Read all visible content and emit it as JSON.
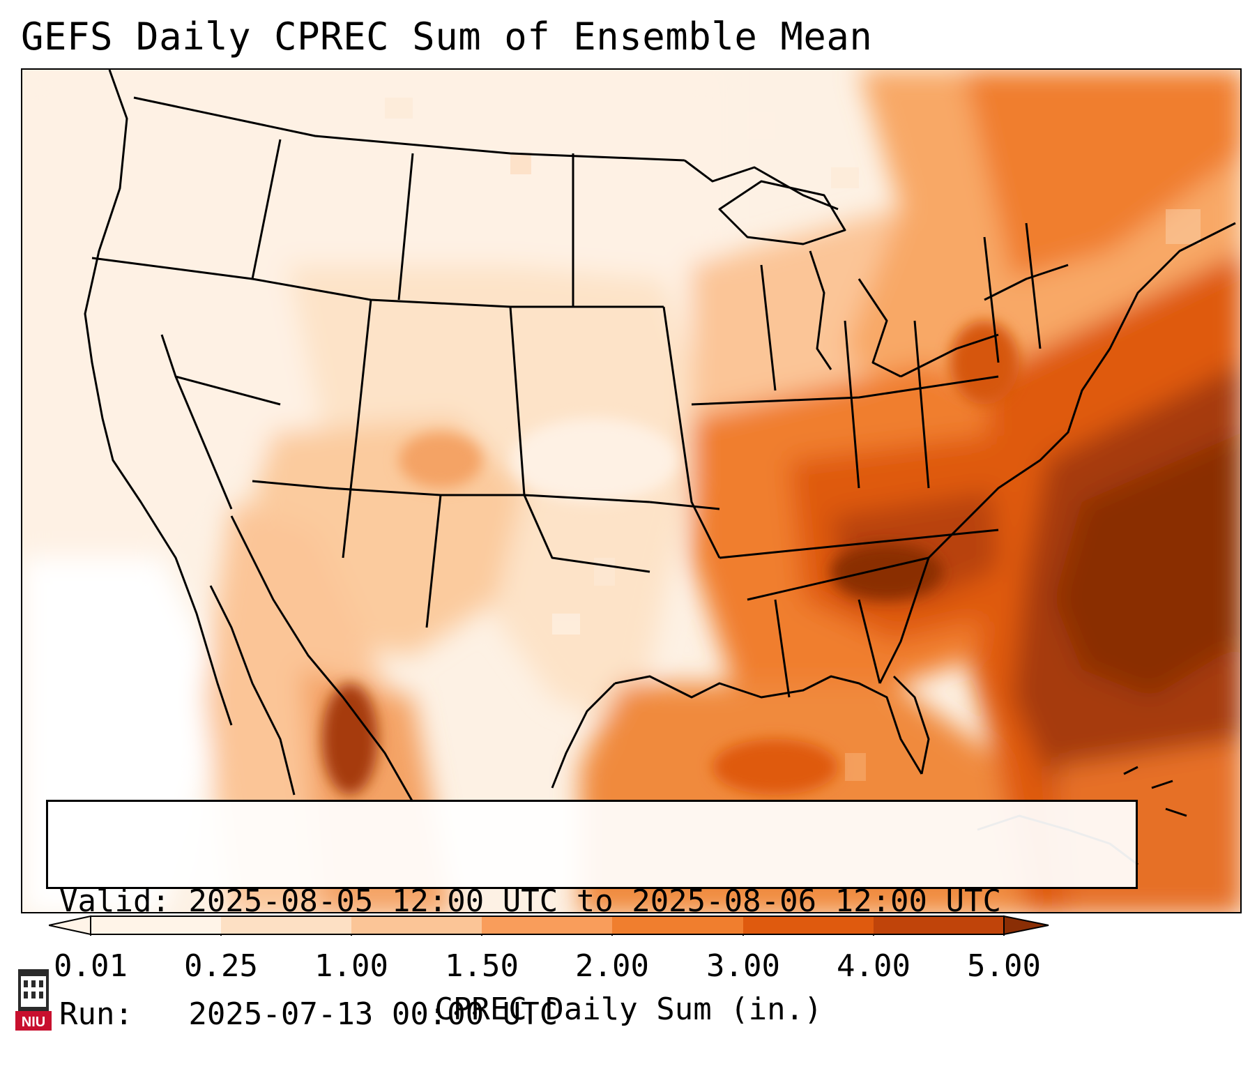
{
  "title": "GEFS Daily CPREC Sum of Ensemble Mean",
  "info": {
    "valid": "Valid: 2025-08-05 12:00 UTC to 2025-08-06 12:00 UTC",
    "run": "Run:   2025-07-13 00:00 UTC"
  },
  "colorbar": {
    "label": "CPREC Daily Sum (in.)",
    "ticks": [
      "0.01",
      "0.25",
      "1.00",
      "1.50",
      "2.00",
      "3.00",
      "4.00",
      "5.00"
    ],
    "colors": [
      "#fff4e8",
      "#fde0c4",
      "#fbc597",
      "#f99d5b",
      "#f07e2e",
      "#df5a0e",
      "#c0440a",
      "#8a2e05"
    ],
    "extend": "both"
  },
  "logo": {
    "text": "NIU",
    "color": "#c8102e"
  }
}
